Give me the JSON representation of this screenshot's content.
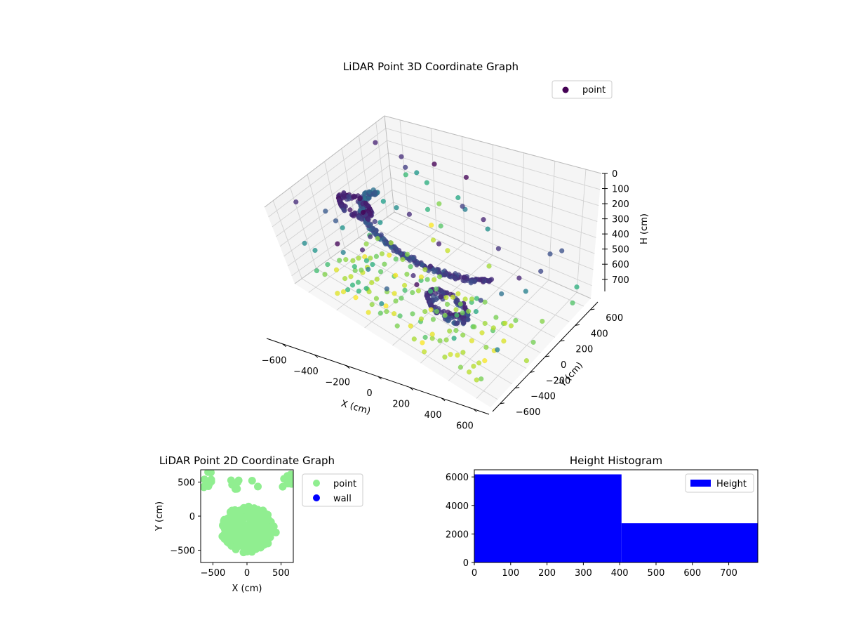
{
  "chart_data": [
    {
      "type": "scatter3d",
      "title": "LiDAR Point 3D Coordinate Graph",
      "xlabel": "X (cm)",
      "ylabel": "Y (cm)",
      "zlabel": "H (cm)",
      "xlim": [
        -700,
        700
      ],
      "ylim": [
        -700,
        700
      ],
      "zlim": [
        0,
        780
      ],
      "z_inverted": true,
      "x_ticks": [
        -600,
        -400,
        -200,
        0,
        200,
        400,
        600
      ],
      "y_ticks": [
        -600,
        -400,
        -200,
        0,
        200,
        400,
        600
      ],
      "z_ticks": [
        0,
        100,
        200,
        300,
        400,
        500,
        600,
        700
      ],
      "colormap": "viridis",
      "grid": true,
      "legend": {
        "placement": "upper-right",
        "entries": [
          {
            "label": "point",
            "color": "#440154"
          }
        ]
      }
    },
    {
      "type": "scatter",
      "title": "LiDAR Point 2D Coordinate Graph",
      "xlabel": "X (cm)",
      "ylabel": "Y (cm)",
      "xlim": [
        -680,
        680
      ],
      "ylim": [
        -680,
        680
      ],
      "x_ticks": [
        -500,
        0,
        500
      ],
      "y_ticks": [
        -500,
        0,
        500
      ],
      "series": [
        {
          "name": "point",
          "color": "#90ee90"
        },
        {
          "name": "wall",
          "color": "#0000ff"
        }
      ],
      "legend": {
        "placement": "outside-right",
        "entries": [
          {
            "label": "point",
            "color": "#90ee90"
          },
          {
            "label": "wall",
            "color": "#0000ff"
          }
        ]
      }
    },
    {
      "type": "bar",
      "title": "Height Histogram",
      "bins": [
        {
          "start": 0,
          "end": 405,
          "count": 6180
        },
        {
          "start": 405,
          "end": 780,
          "count": 2750
        }
      ],
      "xlim": [
        0,
        780
      ],
      "ylim": [
        0,
        6500
      ],
      "x_ticks": [
        0,
        100,
        200,
        300,
        400,
        500,
        600,
        700
      ],
      "y_ticks": [
        0,
        2000,
        4000,
        6000
      ],
      "color": "#0000ff",
      "legend": {
        "placement": "upper-right",
        "entries": [
          {
            "label": "Height",
            "color": "#0000ff"
          }
        ]
      }
    }
  ]
}
